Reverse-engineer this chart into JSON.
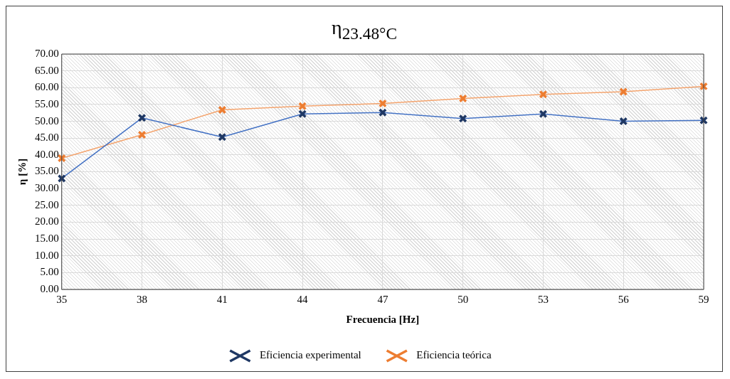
{
  "chart_data": {
    "type": "line",
    "title": "η$_{23.48°C}$",
    "xlabel": "Frecuencia [Hz]",
    "ylabel": "η [%]",
    "categories": [
      "35",
      "38",
      "41",
      "44",
      "47",
      "50",
      "53",
      "56",
      "59"
    ],
    "series": [
      {
        "name": "Eficiencia experimental",
        "color": "#4472c4",
        "values": [
          33.0,
          51.0,
          45.3,
          52.2,
          52.6,
          50.8,
          52.2,
          50.0,
          50.3
        ]
      },
      {
        "name": "Eficiencia teórica",
        "color": "#f4a46e",
        "values": [
          39.0,
          46.0,
          53.4,
          54.5,
          55.3,
          56.8,
          58.0,
          58.8,
          60.4
        ]
      }
    ],
    "ylim": [
      0,
      70
    ],
    "yticks": [
      {
        "value": 0,
        "label": "0.00"
      },
      {
        "value": 5,
        "label": "5.00"
      },
      {
        "value": 10,
        "label": "10.00"
      },
      {
        "value": 15,
        "label": "15.00"
      },
      {
        "value": 20,
        "label": "20.00"
      },
      {
        "value": 25,
        "label": "25.00"
      },
      {
        "value": 30,
        "label": "30.00"
      },
      {
        "value": 35,
        "label": "35.00"
      },
      {
        "value": 40,
        "label": "40.00"
      },
      {
        "value": 45,
        "label": "45.00"
      },
      {
        "value": 50,
        "label": "50.00"
      },
      {
        "value": 55,
        "label": "55.00"
      },
      {
        "value": 60,
        "label": "60.00"
      },
      {
        "value": 65,
        "label": "65.00"
      },
      {
        "value": 70,
        "label": "70.00"
      }
    ],
    "grid": true,
    "legend": "bottom",
    "marker": "cross",
    "line_style": "solid"
  }
}
